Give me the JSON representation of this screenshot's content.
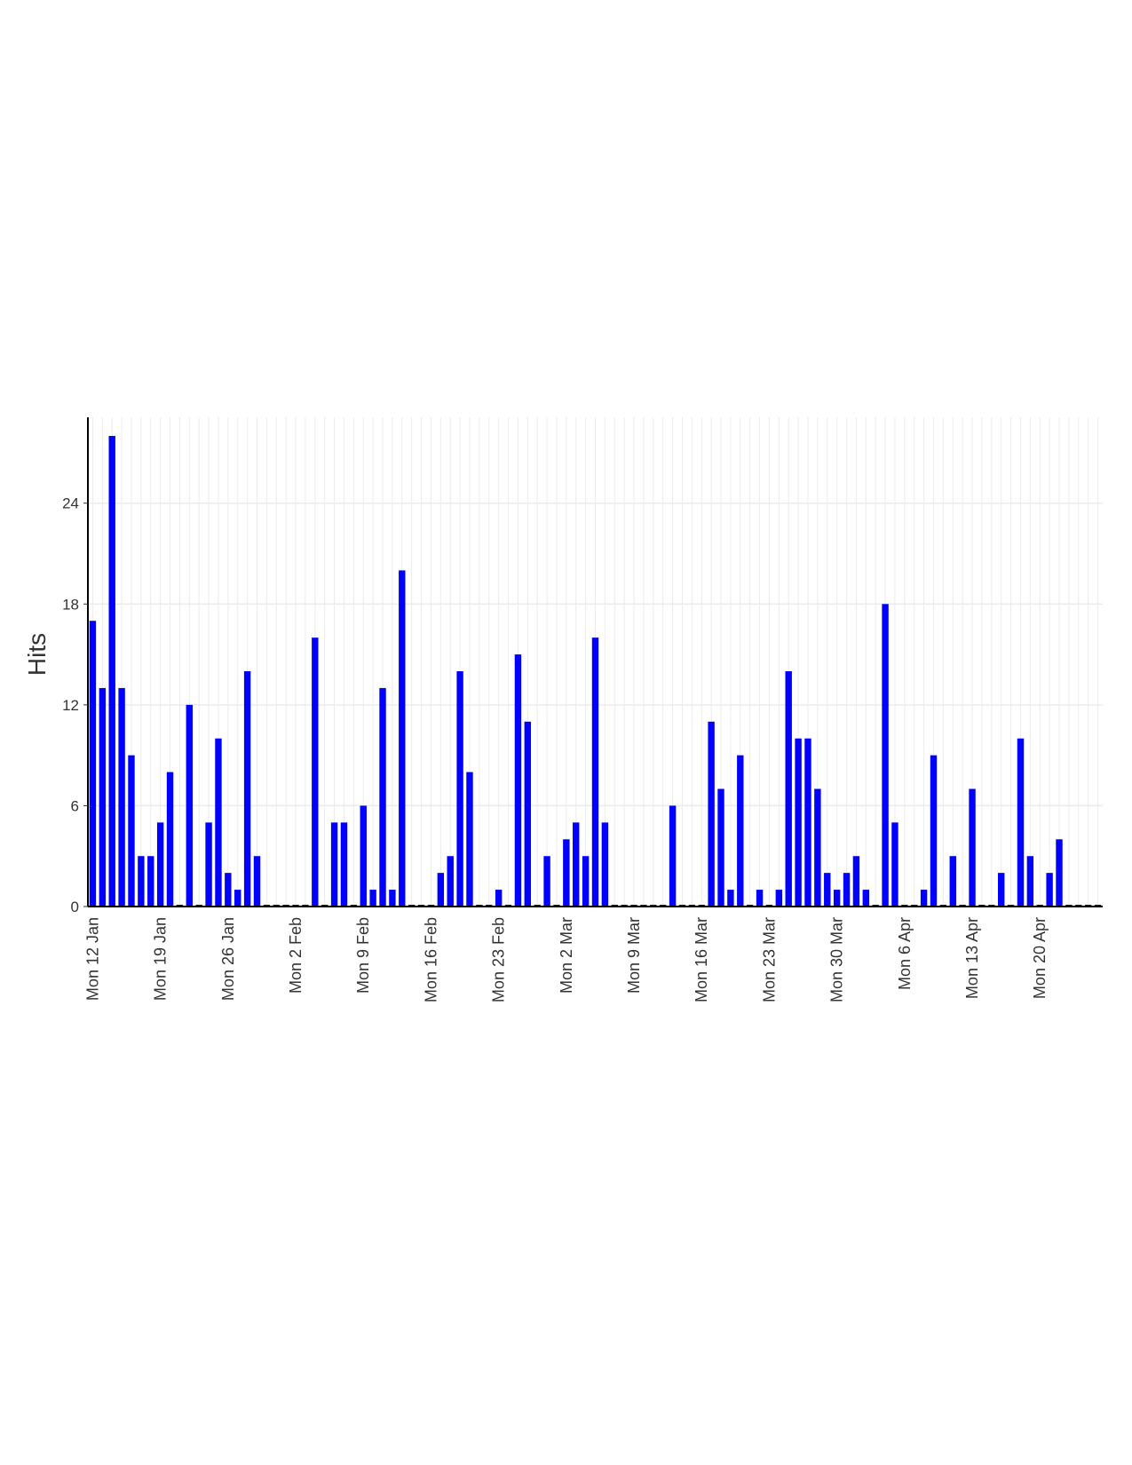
{
  "chart_data": {
    "type": "bar",
    "title": "",
    "xlabel": "",
    "ylabel": "Hits",
    "ylim": [
      0,
      28
    ],
    "yticks": [
      0,
      6,
      12,
      18,
      24
    ],
    "grid": true,
    "bar_color": "#0000ff",
    "axis_color": "#000000",
    "grid_color": "#ebebeb",
    "x_tick_labels": [
      "Mon 12 Jan",
      "Mon 19 Jan",
      "Mon 26 Jan",
      "Mon 2 Feb",
      "Mon 9 Feb",
      "Mon 16 Feb",
      "Mon 23 Feb",
      "Mon 2 Mar",
      "Mon 9 Mar",
      "Mon 16 Mar",
      "Mon 23 Mar",
      "Mon 30 Mar",
      "Mon 6 Apr",
      "Mon 13 Apr",
      "Mon 20 Apr"
    ],
    "values": [
      17,
      13,
      28,
      13,
      9,
      3,
      3,
      5,
      8,
      0,
      12,
      0,
      5,
      10,
      2,
      1,
      14,
      3,
      0,
      0,
      0,
      0,
      0,
      16,
      0,
      5,
      5,
      0,
      6,
      1,
      13,
      1,
      20,
      0,
      0,
      0,
      2,
      3,
      14,
      8,
      0,
      0,
      1,
      0,
      15,
      11,
      0,
      3,
      0,
      4,
      5,
      3,
      16,
      5,
      0,
      0,
      0,
      0,
      0,
      0,
      6,
      0,
      0,
      0,
      11,
      7,
      1,
      9,
      0,
      1,
      0,
      1,
      14,
      10,
      10,
      7,
      2,
      1,
      2,
      3,
      1,
      0,
      18,
      5,
      0,
      0,
      1,
      9,
      0,
      3,
      0,
      7,
      0,
      0,
      2,
      0,
      10,
      3,
      0,
      2,
      4,
      0,
      0,
      0,
      0
    ]
  }
}
